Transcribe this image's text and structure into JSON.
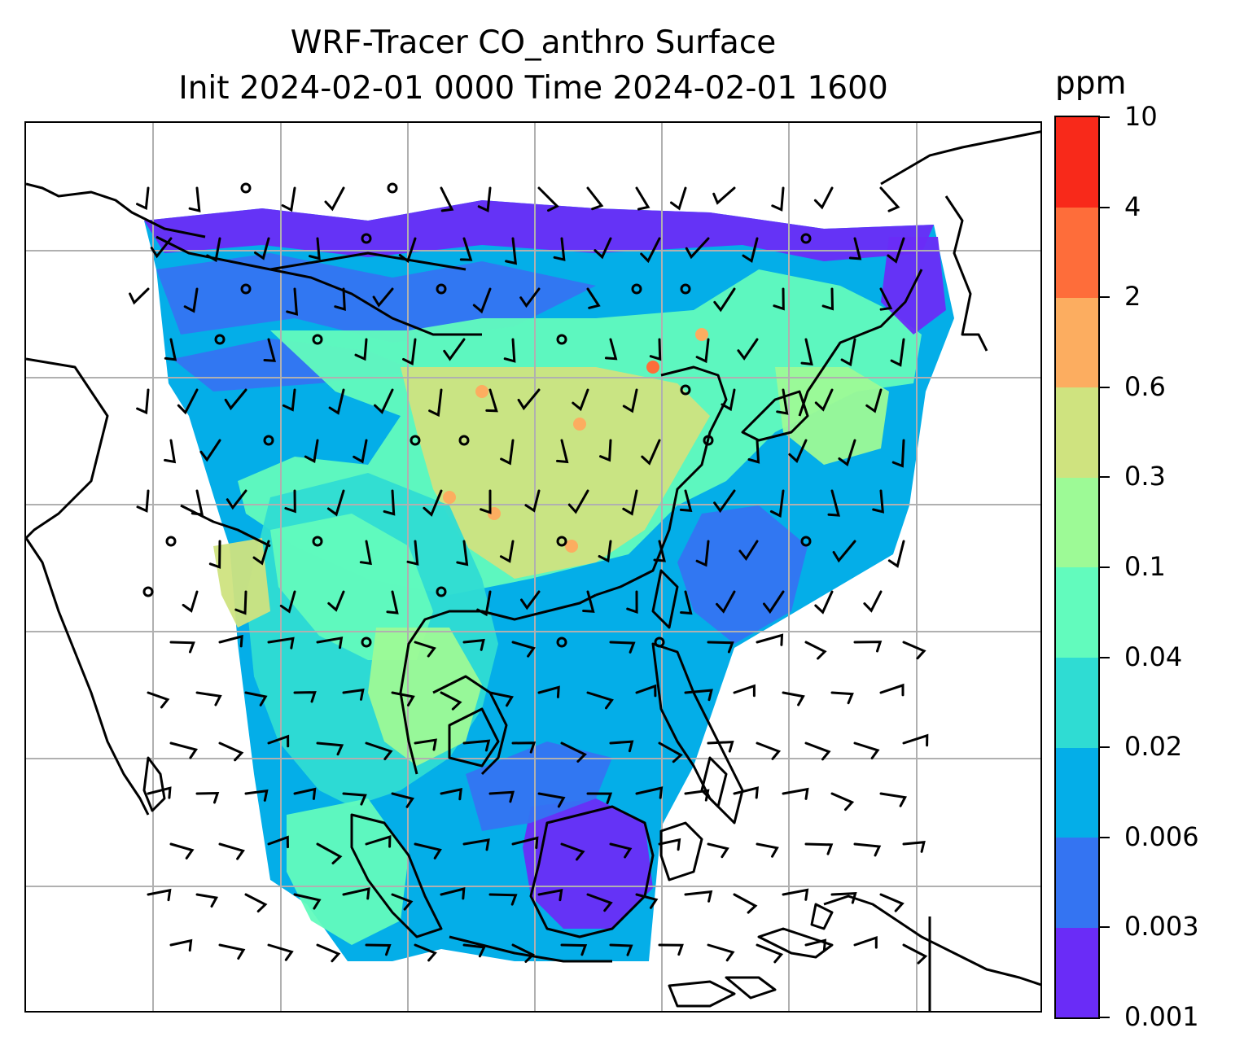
{
  "title_lines": [
    "WRF-Tracer CO_anthro Surface",
    "Init 2024-02-01 0000 Time 2024-02-01 1600"
  ],
  "colorbar": {
    "unit": "ppm",
    "levels": [
      "0.001",
      "0.003",
      "0.006",
      "0.02",
      "0.04",
      "0.1",
      "0.3",
      "0.6",
      "2",
      "4",
      "10"
    ],
    "colors": [
      "#6a2cf7",
      "#3474f2",
      "#04aee8",
      "#2fdcd3",
      "#62fbbd",
      "#9dfa96",
      "#cfe37f",
      "#fcad60",
      "#fe6d3a",
      "#f8291a"
    ]
  },
  "map": {
    "fill_color_for_region": "colorbar.colors",
    "gridline_color": "#b0b0b0",
    "coastline_color": "#000000",
    "barb_color": "#000000"
  }
}
